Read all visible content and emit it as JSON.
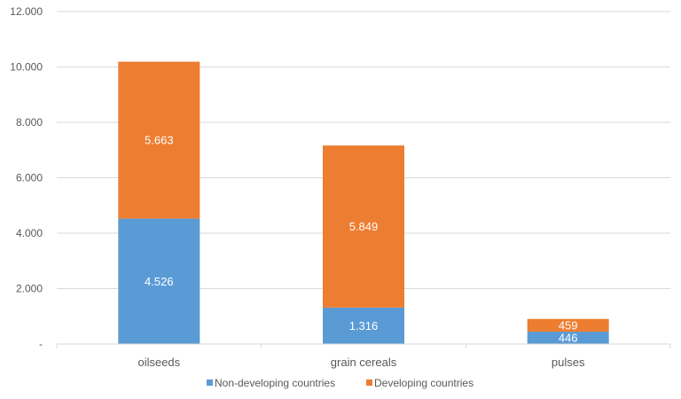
{
  "chart_data": {
    "type": "bar",
    "stacked": true,
    "categories": [
      "oilseeds",
      "grain cereals",
      "pulses"
    ],
    "series": [
      {
        "name": "Non-developing countries",
        "color": "#5B9BD5",
        "values": [
          4526,
          1316,
          446
        ],
        "labels": [
          "4.526",
          "1.316",
          "446"
        ]
      },
      {
        "name": "Developing countries",
        "color": "#ED7D31",
        "values": [
          5663,
          5849,
          459
        ],
        "labels": [
          "5.663",
          "5.849",
          "459"
        ]
      }
    ],
    "y_ticks": [
      {
        "value": 0,
        "label": "-"
      },
      {
        "value": 2000,
        "label": "2.000"
      },
      {
        "value": 4000,
        "label": "4.000"
      },
      {
        "value": 6000,
        "label": "6.000"
      },
      {
        "value": 8000,
        "label": "8.000"
      },
      {
        "value": 10000,
        "label": "10.000"
      },
      {
        "value": 12000,
        "label": "12.000"
      }
    ],
    "ylim": [
      0,
      12000
    ],
    "grid": true,
    "legend_position": "bottom"
  }
}
